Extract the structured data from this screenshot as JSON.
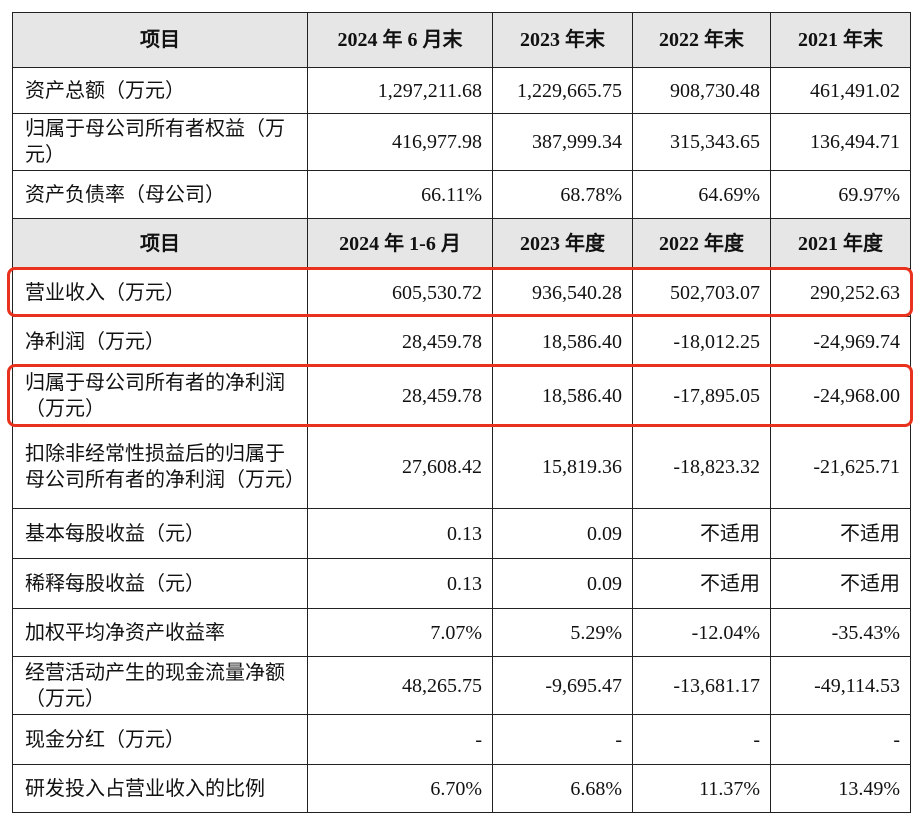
{
  "table": {
    "header1": [
      "项目",
      "2024 年 6 月末",
      "2023 年末",
      "2022 年末",
      "2021 年末"
    ],
    "rows1": [
      [
        "资产总额（万元）",
        "1,297,211.68",
        "1,229,665.75",
        "908,730.48",
        "461,491.02"
      ],
      [
        "归属于母公司所有者权益（万元）",
        "416,977.98",
        "387,999.34",
        "315,343.65",
        "136,494.71"
      ],
      [
        "资产负债率（母公司）",
        "66.11%",
        "68.78%",
        "64.69%",
        "69.97%"
      ]
    ],
    "header2": [
      "项目",
      "2024 年 1-6 月",
      "2023 年度",
      "2022 年度",
      "2021 年度"
    ],
    "rows2": [
      [
        "营业收入（万元）",
        "605,530.72",
        "936,540.28",
        "502,703.07",
        "290,252.63"
      ],
      [
        "净利润（万元）",
        "28,459.78",
        "18,586.40",
        "-18,012.25",
        "-24,969.74"
      ],
      [
        "归属于母公司所有者的净利润（万元）",
        "28,459.78",
        "18,586.40",
        "-17,895.05",
        "-24,968.00"
      ],
      [
        "扣除非经常性损益后的归属于母公司所有者的净利润（万元）",
        "27,608.42",
        "15,819.36",
        "-18,823.32",
        "-21,625.71"
      ],
      [
        "基本每股收益（元）",
        "0.13",
        "0.09",
        "不适用",
        "不适用"
      ],
      [
        "稀释每股收益（元）",
        "0.13",
        "0.09",
        "不适用",
        "不适用"
      ],
      [
        "加权平均净资产收益率",
        "7.07%",
        "5.29%",
        "-12.04%",
        "-35.43%"
      ],
      [
        "经营活动产生的现金流量净额（万元）",
        "48,265.75",
        "-9,695.47",
        "-13,681.17",
        "-49,114.53"
      ],
      [
        "现金分红（万元）",
        "-",
        "-",
        "-",
        "-"
      ],
      [
        "研发投入占营业收入的比例",
        "6.70%",
        "6.68%",
        "11.37%",
        "13.49%"
      ]
    ]
  }
}
